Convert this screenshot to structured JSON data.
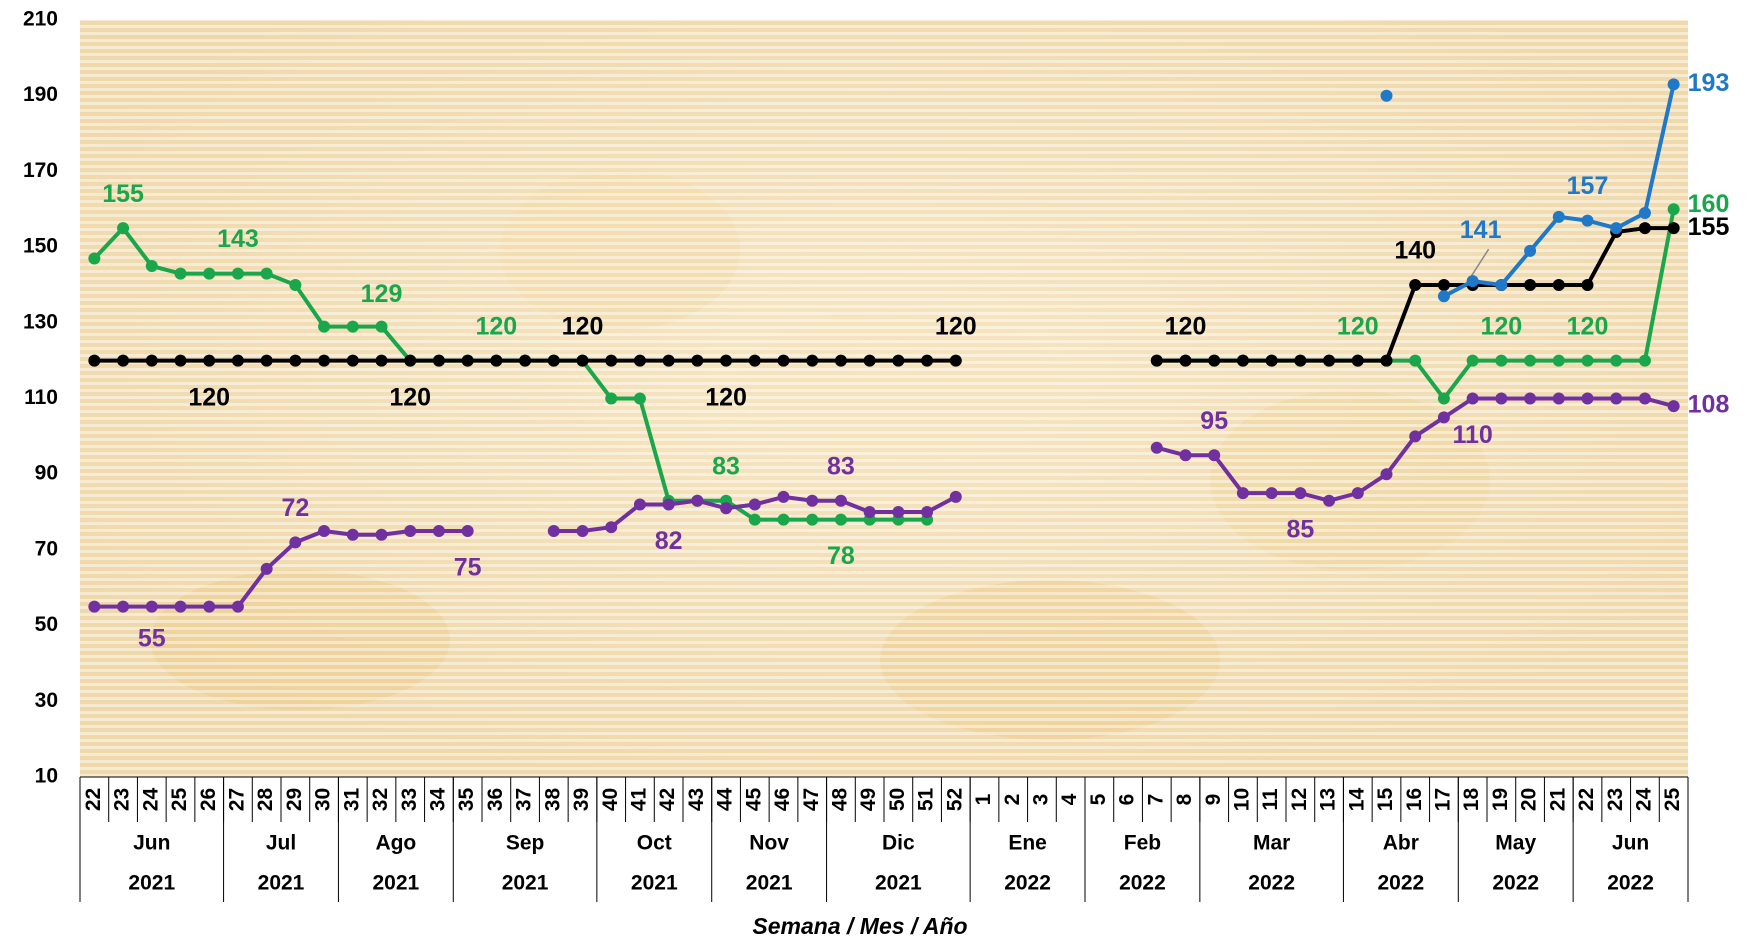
{
  "chart_data": {
    "type": "line",
    "x_label": "Semana / Mes / Año",
    "categories": [
      22,
      23,
      24,
      25,
      26,
      27,
      28,
      29,
      30,
      31,
      32,
      33,
      34,
      35,
      36,
      37,
      38,
      39,
      40,
      41,
      42,
      43,
      44,
      45,
      46,
      47,
      48,
      49,
      50,
      51,
      52,
      1,
      2,
      3,
      4,
      5,
      6,
      7,
      8,
      9,
      10,
      11,
      12,
      13,
      14,
      15,
      16,
      17,
      18,
      19,
      20,
      21,
      22,
      23,
      24,
      25
    ],
    "category_months": [
      "Jun",
      "Jun",
      "Jun",
      "Jun",
      "Jun",
      "Jul",
      "Jul",
      "Jul",
      "Jul",
      "Ago",
      "Ago",
      "Ago",
      "Ago",
      "Sep",
      "Sep",
      "Sep",
      "Sep",
      "Sep",
      "Oct",
      "Oct",
      "Oct",
      "Oct",
      "Nov",
      "Nov",
      "Nov",
      "Nov",
      "Dic",
      "Dic",
      "Dic",
      "Dic",
      "Dic",
      "Ene",
      "Ene",
      "Ene",
      "Ene",
      "Feb",
      "Feb",
      "Feb",
      "Feb",
      "Mar",
      "Mar",
      "Mar",
      "Mar",
      "Mar",
      "Abr",
      "Abr",
      "Abr",
      "Abr",
      "May",
      "May",
      "May",
      "May",
      "Jun",
      "Jun",
      "Jun",
      "Jun"
    ],
    "category_years": [
      "2021",
      "2021",
      "2021",
      "2021",
      "2021",
      "2021",
      "2021",
      "2021",
      "2021",
      "2021",
      "2021",
      "2021",
      "2021",
      "2021",
      "2021",
      "2021",
      "2021",
      "2021",
      "2021",
      "2021",
      "2021",
      "2021",
      "2021",
      "2021",
      "2021",
      "2021",
      "2021",
      "2021",
      "2021",
      "2021",
      "2021",
      "2022",
      "2022",
      "2022",
      "2022",
      "2022",
      "2022",
      "2022",
      "2022",
      "2022",
      "2022",
      "2022",
      "2022",
      "2022",
      "2022",
      "2022",
      "2022",
      "2022",
      "2022",
      "2022",
      "2022",
      "2022",
      "2022",
      "2022",
      "2022",
      "2022"
    ],
    "ylim": [
      10,
      210
    ],
    "yticks": [
      10,
      30,
      50,
      70,
      90,
      110,
      130,
      150,
      170,
      190,
      210
    ],
    "series": [
      {
        "color": "#1aa64a",
        "values": [
          147,
          155,
          145,
          143,
          143,
          143,
          143,
          140,
          129,
          129,
          129,
          120,
          120,
          120,
          120,
          120,
          120,
          120,
          110,
          110,
          83,
          83,
          83,
          78,
          78,
          78,
          78,
          78,
          78,
          78,
          null,
          null,
          null,
          null,
          null,
          null,
          null,
          120,
          120,
          120,
          120,
          120,
          120,
          120,
          120,
          120,
          120,
          110,
          120,
          120,
          120,
          120,
          120,
          120,
          120,
          160
        ]
      },
      {
        "color": "#000000",
        "values": [
          120,
          120,
          120,
          120,
          120,
          120,
          120,
          120,
          120,
          120,
          120,
          120,
          120,
          120,
          120,
          120,
          120,
          120,
          120,
          120,
          120,
          120,
          120,
          120,
          120,
          120,
          120,
          120,
          120,
          120,
          120,
          null,
          null,
          null,
          null,
          null,
          null,
          120,
          120,
          120,
          120,
          120,
          120,
          120,
          120,
          120,
          140,
          140,
          140,
          140,
          140,
          140,
          140,
          154,
          155,
          155
        ]
      },
      {
        "color": "#7030a0",
        "values": [
          55,
          55,
          55,
          55,
          55,
          55,
          65,
          72,
          75,
          74,
          74,
          75,
          75,
          75,
          null,
          null,
          75,
          75,
          76,
          82,
          82,
          83,
          81,
          82,
          84,
          83,
          83,
          80,
          80,
          80,
          84,
          null,
          null,
          null,
          null,
          null,
          null,
          97,
          95,
          95,
          85,
          85,
          85,
          83,
          85,
          90,
          100,
          105,
          110,
          110,
          110,
          110,
          110,
          110,
          110,
          108
        ]
      },
      {
        "color": "#1f78c8",
        "values": [
          null,
          null,
          null,
          null,
          null,
          null,
          null,
          null,
          null,
          null,
          null,
          null,
          null,
          null,
          null,
          null,
          null,
          null,
          null,
          null,
          null,
          null,
          null,
          null,
          null,
          null,
          null,
          null,
          null,
          null,
          null,
          null,
          null,
          null,
          null,
          null,
          null,
          null,
          null,
          null,
          null,
          null,
          null,
          null,
          null,
          190,
          null,
          137,
          141,
          140,
          149,
          158,
          157,
          155,
          159,
          193
        ]
      }
    ]
  }
}
